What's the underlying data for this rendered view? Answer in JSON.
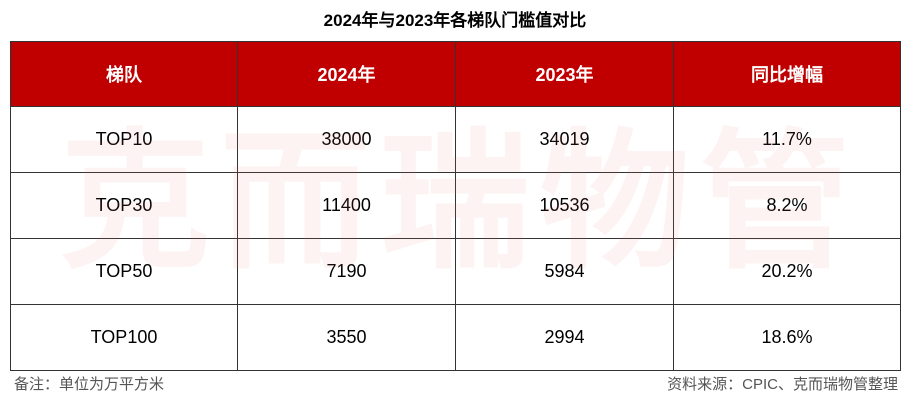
{
  "title": "2024年与2023年各梯队门槛值对比",
  "table": {
    "header": [
      "梯队",
      "2024年",
      "2023年",
      "同比增幅"
    ],
    "rows": [
      [
        "TOP10",
        "38000",
        "34019",
        "11.7%"
      ],
      [
        "TOP30",
        "11400",
        "10536",
        "8.2%"
      ],
      [
        "TOP50",
        "7190",
        "5984",
        "20.2%"
      ],
      [
        "TOP100",
        "3550",
        "2994",
        "18.6%"
      ]
    ]
  },
  "watermark": "克而瑞物管",
  "note": "备注：单位为万平方米",
  "source": "资料来源：CPIC、克而瑞物管整理"
}
